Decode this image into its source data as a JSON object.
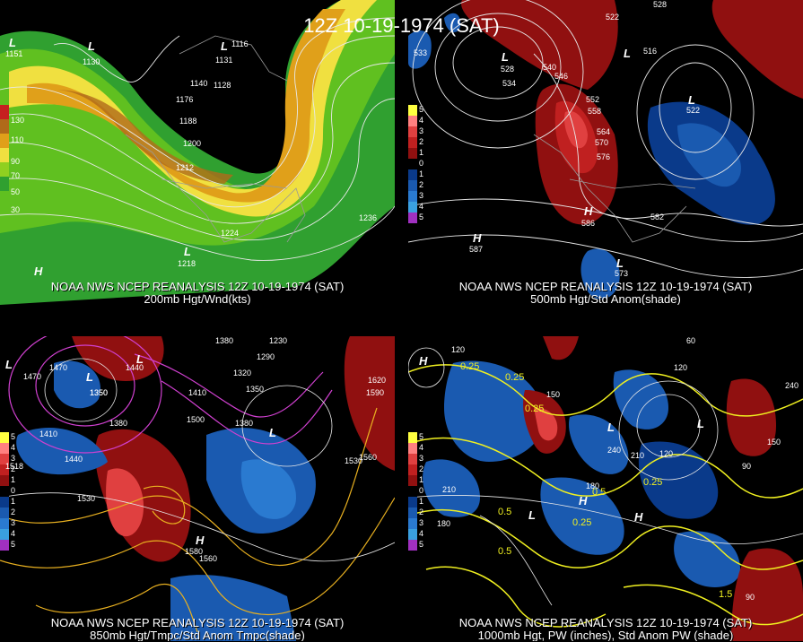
{
  "title": "12Z 10-19-1974 (SAT)",
  "panels": [
    {
      "caption1": "NOAA NWS NCEP REANALYSIS 12Z 10-19-1974 (SAT)",
      "caption2": "200mb Hgt/Wnd(kts)",
      "legend": [
        "130",
        "110",
        "90",
        "70",
        "50",
        "30"
      ],
      "legend_colors": [
        "#c62020",
        "#b06a1a",
        "#e0a01a",
        "#f0e040",
        "#90d020",
        "#30a030"
      ],
      "labels": [
        "1116",
        "1128",
        "1140",
        "1176",
        "1188",
        "1200",
        "1212",
        "1224",
        "1236",
        "1130",
        "1131",
        "1151",
        "1218"
      ],
      "highs_lows": [
        "L",
        "L",
        "L",
        "L",
        "H"
      ]
    },
    {
      "caption1": "NOAA NWS NCEP REANALYSIS 12Z 10-19-1974 (SAT)",
      "caption2": "500mb Hgt/Std Anom(shade)",
      "legend": [
        "5",
        "4",
        "3",
        "2",
        "1",
        "0",
        "1",
        "2",
        "3",
        "4",
        "5"
      ],
      "legend_colors": [
        "#ffff40",
        "#ff8080",
        "#e04040",
        "#c02020",
        "#901010",
        "#000000",
        "#0a3a8a",
        "#1a5ab0",
        "#2a7ad0",
        "#3aa0e0",
        "#a030c0"
      ],
      "labels": [
        "522",
        "528",
        "516",
        "522",
        "534",
        "540",
        "546",
        "552",
        "558",
        "564",
        "570",
        "576",
        "582",
        "586",
        "587",
        "573",
        "533",
        "528"
      ],
      "highs_lows": [
        "L",
        "L",
        "L",
        "H",
        "H",
        "L"
      ]
    },
    {
      "caption1": "NOAA NWS NCEP REANALYSIS 12Z 10-19-1974 (SAT)",
      "caption2": "850mb Hgt/Tmpc/Std Anom Tmpc(shade)",
      "legend": [
        "5",
        "4",
        "3",
        "2",
        "1",
        "0",
        "1",
        "2",
        "3",
        "4",
        "5"
      ],
      "legend_colors": [
        "#ffff40",
        "#ff8080",
        "#e04040",
        "#c02020",
        "#901010",
        "#000000",
        "#0a3a8a",
        "#1a5ab0",
        "#2a7ad0",
        "#3aa0e0",
        "#a030c0"
      ],
      "labels": [
        "1230",
        "1380",
        "1470",
        "1440",
        "1410",
        "1320",
        "1350",
        "1350",
        "1290",
        "1500",
        "1380",
        "1410",
        "1440",
        "1530",
        "1560",
        "1590",
        "1620",
        "1560",
        "1530",
        "1470",
        "1518",
        "1580",
        "1380",
        "1350"
      ],
      "highs_lows": [
        "L",
        "L",
        "L",
        "L",
        "H"
      ]
    },
    {
      "caption1": "NOAA NWS NCEP REANALYSIS 12Z 10-19-1974 (SAT)",
      "caption2": "1000mb Hgt, PW (inches), Std Anom PW (shade)",
      "legend": [
        "5",
        "4",
        "3",
        "2",
        "1",
        "0",
        "1",
        "2",
        "3",
        "4",
        "5"
      ],
      "legend_colors": [
        "#ffff40",
        "#ff8080",
        "#e04040",
        "#c02020",
        "#901010",
        "#000000",
        "#0a3a8a",
        "#1a5ab0",
        "#2a7ad0",
        "#3aa0e0",
        "#a030c0"
      ],
      "labels": [
        "0.25",
        "0.25",
        "0.25",
        "0.5",
        "0.5",
        "0.5",
        "0.25",
        "0.25",
        "1.5",
        "120",
        "150",
        "180",
        "210",
        "240",
        "90",
        "60",
        "120",
        "150",
        "180",
        "210",
        "240",
        "120",
        "90"
      ],
      "highs_lows": [
        "H",
        "H",
        "L",
        "L",
        "H",
        "L"
      ]
    }
  ]
}
